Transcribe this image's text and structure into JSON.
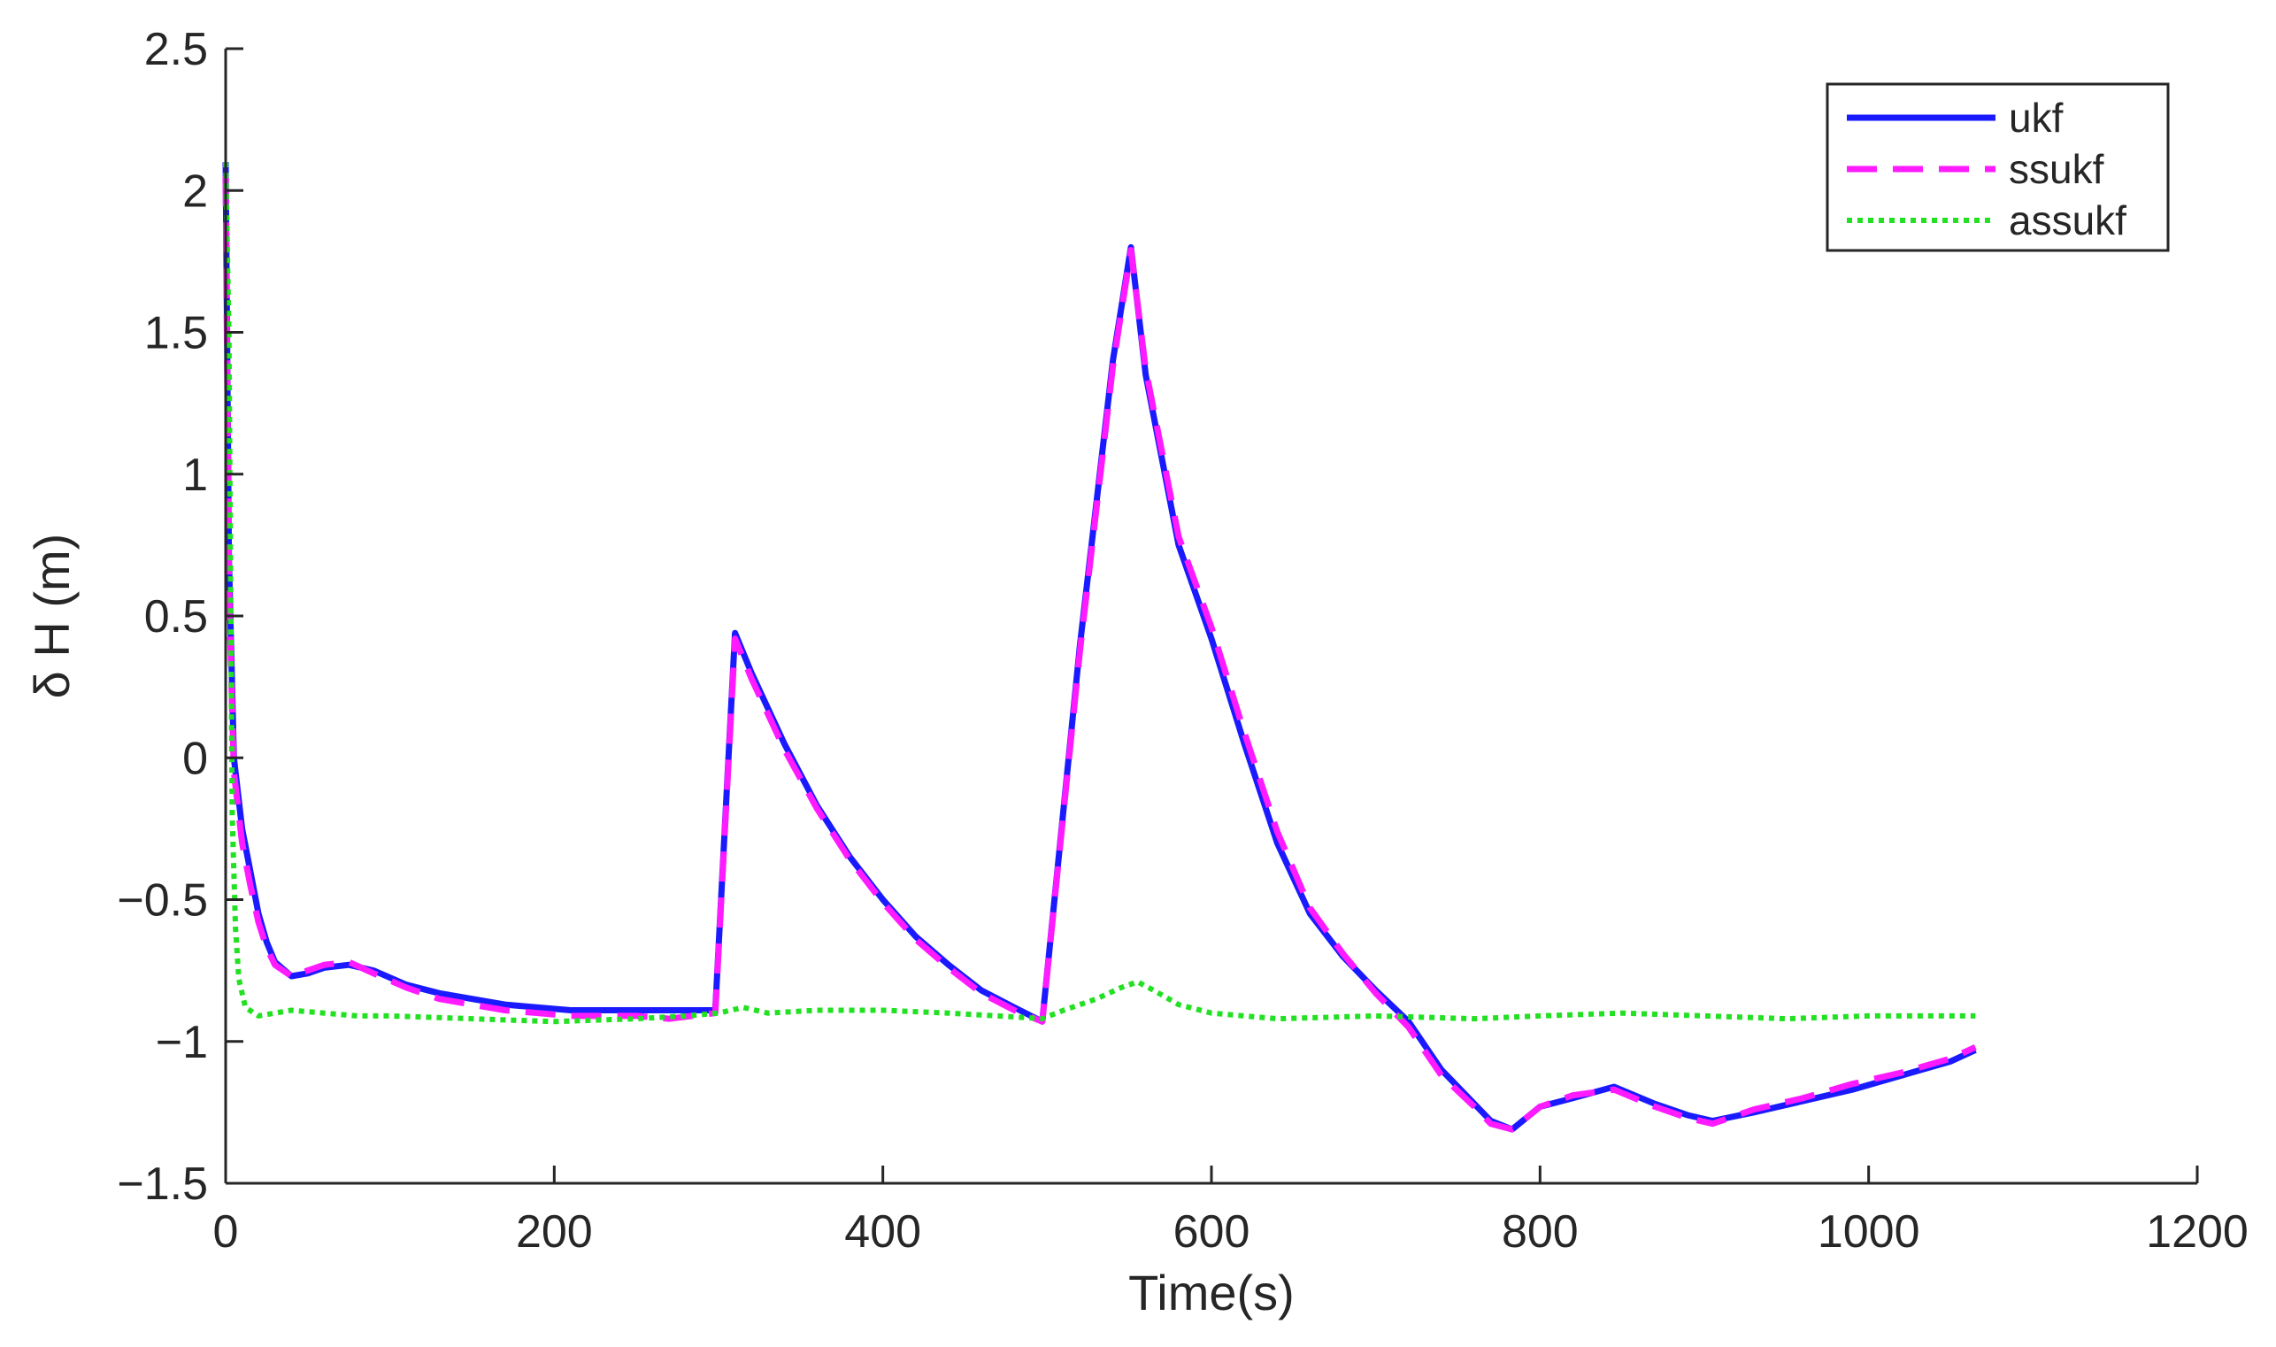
{
  "chart_data": {
    "type": "line",
    "title": "",
    "xlabel": "Time(s)",
    "ylabel": "δ H (m)",
    "xlim": [
      0,
      1200
    ],
    "ylim": [
      -1.5,
      2.5
    ],
    "xticks": [
      0,
      200,
      400,
      600,
      800,
      1000,
      1200
    ],
    "yticks": [
      -1.5,
      -1,
      -0.5,
      0,
      0.5,
      1,
      1.5,
      2,
      2.5
    ],
    "xtick_labels": [
      "0",
      "200",
      "400",
      "600",
      "800",
      "1000",
      "1200"
    ],
    "ytick_labels": [
      "−1.5",
      "−1",
      "−0.5",
      "0",
      "0.5",
      "1",
      "1.5",
      "2",
      "2.5"
    ],
    "grid": false,
    "legend_position": "top-right",
    "series": [
      {
        "name": "ukf",
        "color": "#1a1aff",
        "style": "solid",
        "points": [
          [
            0,
            2.1
          ],
          [
            2,
            0.7
          ],
          [
            5,
            0.0
          ],
          [
            10,
            -0.25
          ],
          [
            15,
            -0.4
          ],
          [
            20,
            -0.55
          ],
          [
            25,
            -0.65
          ],
          [
            30,
            -0.72
          ],
          [
            40,
            -0.77
          ],
          [
            50,
            -0.76
          ],
          [
            60,
            -0.74
          ],
          [
            75,
            -0.73
          ],
          [
            90,
            -0.75
          ],
          [
            110,
            -0.8
          ],
          [
            130,
            -0.83
          ],
          [
            150,
            -0.85
          ],
          [
            170,
            -0.87
          ],
          [
            190,
            -0.88
          ],
          [
            210,
            -0.89
          ],
          [
            230,
            -0.89
          ],
          [
            250,
            -0.89
          ],
          [
            270,
            -0.89
          ],
          [
            298,
            -0.89
          ],
          [
            310,
            0.44
          ],
          [
            320,
            0.3
          ],
          [
            340,
            0.05
          ],
          [
            360,
            -0.17
          ],
          [
            380,
            -0.35
          ],
          [
            400,
            -0.5
          ],
          [
            420,
            -0.63
          ],
          [
            440,
            -0.73
          ],
          [
            460,
            -0.82
          ],
          [
            480,
            -0.88
          ],
          [
            497,
            -0.93
          ],
          [
            520,
            0.4
          ],
          [
            540,
            1.4
          ],
          [
            551,
            1.8
          ],
          [
            560,
            1.35
          ],
          [
            580,
            0.75
          ],
          [
            600,
            0.42
          ],
          [
            620,
            0.05
          ],
          [
            640,
            -0.3
          ],
          [
            660,
            -0.55
          ],
          [
            680,
            -0.7
          ],
          [
            700,
            -0.82
          ],
          [
            720,
            -0.93
          ],
          [
            740,
            -1.1
          ],
          [
            760,
            -1.22
          ],
          [
            770,
            -1.28
          ],
          [
            783,
            -1.31
          ],
          [
            800,
            -1.23
          ],
          [
            820,
            -1.2
          ],
          [
            845,
            -1.16
          ],
          [
            870,
            -1.22
          ],
          [
            890,
            -1.26
          ],
          [
            905,
            -1.28
          ],
          [
            930,
            -1.25
          ],
          [
            960,
            -1.21
          ],
          [
            990,
            -1.17
          ],
          [
            1020,
            -1.12
          ],
          [
            1050,
            -1.07
          ],
          [
            1065,
            -1.03
          ]
        ]
      },
      {
        "name": "ssukf",
        "color": "#ff1aff",
        "style": "dashed",
        "points": [
          [
            0,
            2.05
          ],
          [
            2,
            0.6
          ],
          [
            5,
            -0.05
          ],
          [
            10,
            -0.3
          ],
          [
            15,
            -0.45
          ],
          [
            20,
            -0.58
          ],
          [
            25,
            -0.67
          ],
          [
            30,
            -0.73
          ],
          [
            40,
            -0.77
          ],
          [
            50,
            -0.75
          ],
          [
            60,
            -0.73
          ],
          [
            75,
            -0.72
          ],
          [
            90,
            -0.76
          ],
          [
            110,
            -0.81
          ],
          [
            130,
            -0.85
          ],
          [
            150,
            -0.87
          ],
          [
            170,
            -0.89
          ],
          [
            190,
            -0.9
          ],
          [
            210,
            -0.91
          ],
          [
            230,
            -0.91
          ],
          [
            250,
            -0.91
          ],
          [
            270,
            -0.92
          ],
          [
            298,
            -0.9
          ],
          [
            310,
            0.42
          ],
          [
            320,
            0.28
          ],
          [
            340,
            0.03
          ],
          [
            360,
            -0.18
          ],
          [
            380,
            -0.36
          ],
          [
            400,
            -0.51
          ],
          [
            420,
            -0.64
          ],
          [
            440,
            -0.74
          ],
          [
            460,
            -0.83
          ],
          [
            480,
            -0.89
          ],
          [
            497,
            -0.93
          ],
          [
            520,
            0.38
          ],
          [
            540,
            1.38
          ],
          [
            551,
            1.79
          ],
          [
            560,
            1.37
          ],
          [
            580,
            0.78
          ],
          [
            600,
            0.46
          ],
          [
            620,
            0.09
          ],
          [
            640,
            -0.26
          ],
          [
            660,
            -0.53
          ],
          [
            680,
            -0.69
          ],
          [
            700,
            -0.83
          ],
          [
            720,
            -0.95
          ],
          [
            740,
            -1.12
          ],
          [
            760,
            -1.23
          ],
          [
            770,
            -1.29
          ],
          [
            783,
            -1.31
          ],
          [
            800,
            -1.23
          ],
          [
            820,
            -1.19
          ],
          [
            845,
            -1.17
          ],
          [
            870,
            -1.23
          ],
          [
            890,
            -1.27
          ],
          [
            905,
            -1.29
          ],
          [
            930,
            -1.24
          ],
          [
            960,
            -1.2
          ],
          [
            990,
            -1.15
          ],
          [
            1020,
            -1.11
          ],
          [
            1050,
            -1.06
          ],
          [
            1065,
            -1.02
          ]
        ]
      },
      {
        "name": "assukf",
        "color": "#22e022",
        "style": "dotted",
        "points": [
          [
            0,
            2.1
          ],
          [
            2,
            1.5
          ],
          [
            4,
            -0.2
          ],
          [
            6,
            -0.6
          ],
          [
            8,
            -0.78
          ],
          [
            12,
            -0.88
          ],
          [
            20,
            -0.91
          ],
          [
            30,
            -0.9
          ],
          [
            40,
            -0.89
          ],
          [
            60,
            -0.9
          ],
          [
            80,
            -0.91
          ],
          [
            100,
            -0.91
          ],
          [
            150,
            -0.92
          ],
          [
            200,
            -0.93
          ],
          [
            250,
            -0.92
          ],
          [
            280,
            -0.91
          ],
          [
            300,
            -0.9
          ],
          [
            315,
            -0.88
          ],
          [
            330,
            -0.9
          ],
          [
            360,
            -0.89
          ],
          [
            400,
            -0.89
          ],
          [
            440,
            -0.9
          ],
          [
            470,
            -0.91
          ],
          [
            497,
            -0.92
          ],
          [
            510,
            -0.89
          ],
          [
            530,
            -0.85
          ],
          [
            545,
            -0.81
          ],
          [
            555,
            -0.79
          ],
          [
            565,
            -0.82
          ],
          [
            580,
            -0.87
          ],
          [
            600,
            -0.9
          ],
          [
            640,
            -0.92
          ],
          [
            700,
            -0.91
          ],
          [
            760,
            -0.92
          ],
          [
            800,
            -0.91
          ],
          [
            850,
            -0.9
          ],
          [
            900,
            -0.91
          ],
          [
            950,
            -0.92
          ],
          [
            1000,
            -0.91
          ],
          [
            1065,
            -0.91
          ]
        ]
      }
    ]
  }
}
